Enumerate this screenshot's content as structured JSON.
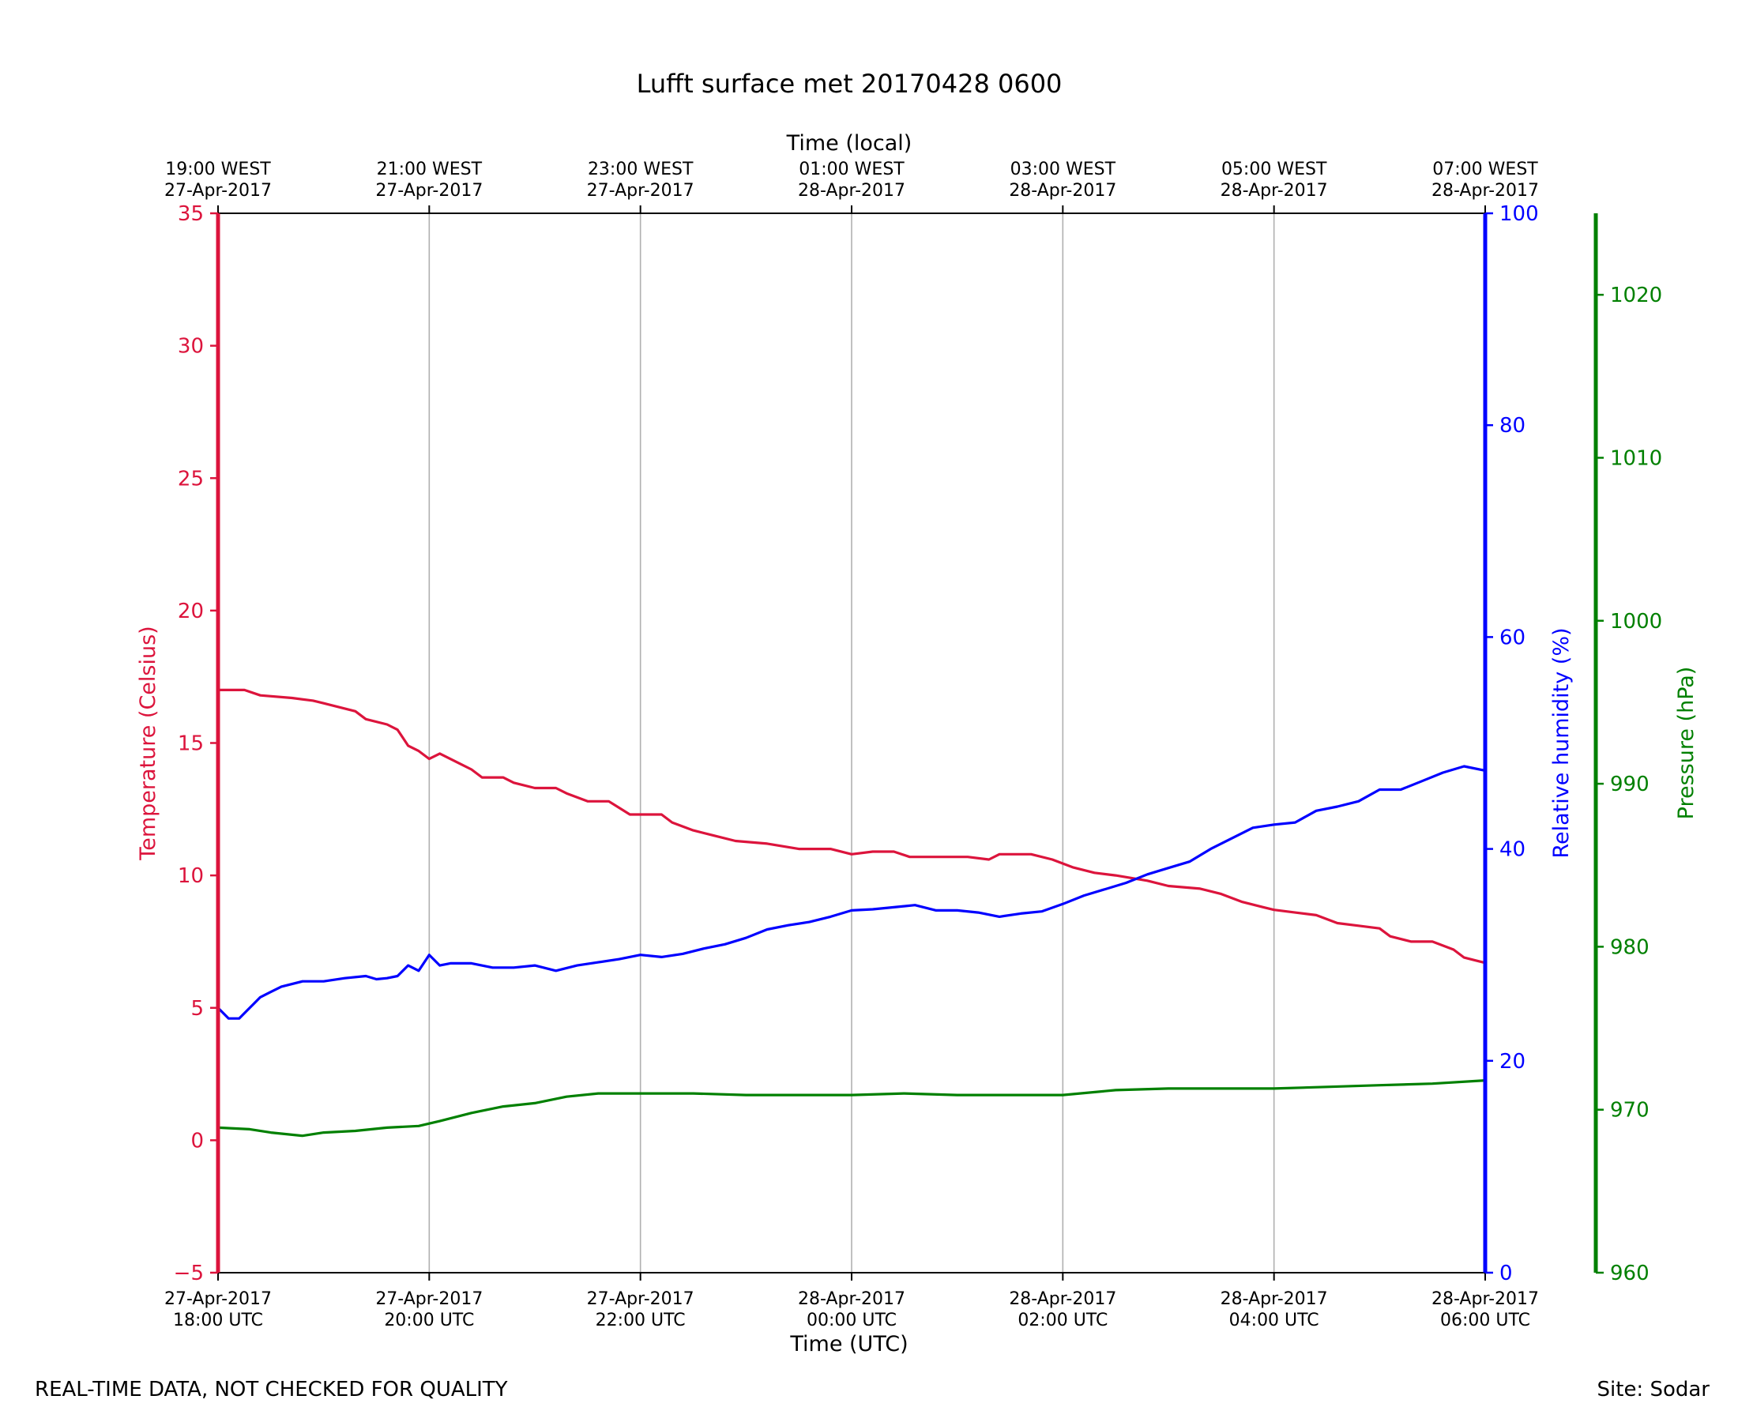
{
  "chart_data": {
    "type": "line",
    "title": "Lufft surface met 20170428 0600",
    "xlabel": "Time (UTC)",
    "x2label": "Time (local)",
    "x_ticks_bottom": [
      {
        "x": 0,
        "line1": "27-Apr-2017",
        "line2": "18:00 UTC"
      },
      {
        "x": 2,
        "line1": "27-Apr-2017",
        "line2": "20:00 UTC"
      },
      {
        "x": 4,
        "line1": "27-Apr-2017",
        "line2": "22:00 UTC"
      },
      {
        "x": 6,
        "line1": "28-Apr-2017",
        "line2": "00:00 UTC"
      },
      {
        "x": 8,
        "line1": "28-Apr-2017",
        "line2": "02:00 UTC"
      },
      {
        "x": 10,
        "line1": "28-Apr-2017",
        "line2": "04:00 UTC"
      },
      {
        "x": 12,
        "line1": "28-Apr-2017",
        "line2": "06:00 UTC"
      }
    ],
    "x_ticks_top": [
      {
        "x": 0,
        "line1": "19:00 WEST",
        "line2": "27-Apr-2017"
      },
      {
        "x": 2,
        "line1": "21:00 WEST",
        "line2": "27-Apr-2017"
      },
      {
        "x": 4,
        "line1": "23:00 WEST",
        "line2": "27-Apr-2017"
      },
      {
        "x": 6,
        "line1": "01:00 WEST",
        "line2": "28-Apr-2017"
      },
      {
        "x": 8,
        "line1": "03:00 WEST",
        "line2": "28-Apr-2017"
      },
      {
        "x": 10,
        "line1": "05:00 WEST",
        "line2": "28-Apr-2017"
      },
      {
        "x": 12,
        "line1": "07:00 WEST",
        "line2": "28-Apr-2017"
      }
    ],
    "xlim": [
      0,
      12
    ],
    "axes": {
      "temperature": {
        "label": "Temperature (Celsius)",
        "ylim": [
          -5,
          35
        ],
        "ticks": [
          -5,
          0,
          5,
          10,
          15,
          20,
          25,
          30,
          35
        ],
        "color": "#dc143c",
        "side": "left"
      },
      "humidity": {
        "label": "Relative humidity (%)",
        "ylim": [
          0,
          100
        ],
        "ticks": [
          0,
          20,
          40,
          60,
          80,
          100
        ],
        "color": "#0000ff",
        "side": "right"
      },
      "pressure": {
        "label": "Pressure (hPa)",
        "ylim": [
          960,
          1025
        ],
        "ticks": [
          960,
          970,
          980,
          990,
          1000,
          1010,
          1020
        ],
        "color": "#008000",
        "side": "right-outer"
      }
    },
    "grid": "vertical",
    "series": [
      {
        "axis": "temperature",
        "color": "#dc143c",
        "points": [
          [
            0,
            17.0
          ],
          [
            0.25,
            17.0
          ],
          [
            0.4,
            16.8
          ],
          [
            0.7,
            16.7
          ],
          [
            0.9,
            16.6
          ],
          [
            1.0,
            16.5
          ],
          [
            1.3,
            16.2
          ],
          [
            1.4,
            15.9
          ],
          [
            1.6,
            15.7
          ],
          [
            1.7,
            15.5
          ],
          [
            1.75,
            15.2
          ],
          [
            1.8,
            14.9
          ],
          [
            1.9,
            14.7
          ],
          [
            2.0,
            14.4
          ],
          [
            2.1,
            14.6
          ],
          [
            2.3,
            14.2
          ],
          [
            2.4,
            14.0
          ],
          [
            2.5,
            13.7
          ],
          [
            2.7,
            13.7
          ],
          [
            2.8,
            13.5
          ],
          [
            3.0,
            13.3
          ],
          [
            3.2,
            13.3
          ],
          [
            3.3,
            13.1
          ],
          [
            3.5,
            12.8
          ],
          [
            3.7,
            12.8
          ],
          [
            3.9,
            12.3
          ],
          [
            4.2,
            12.3
          ],
          [
            4.3,
            12.0
          ],
          [
            4.5,
            11.7
          ],
          [
            4.7,
            11.5
          ],
          [
            4.9,
            11.3
          ],
          [
            5.2,
            11.2
          ],
          [
            5.5,
            11.0
          ],
          [
            5.8,
            11.0
          ],
          [
            6.0,
            10.8
          ],
          [
            6.2,
            10.9
          ],
          [
            6.4,
            10.9
          ],
          [
            6.55,
            10.7
          ],
          [
            6.8,
            10.7
          ],
          [
            7.1,
            10.7
          ],
          [
            7.3,
            10.6
          ],
          [
            7.4,
            10.8
          ],
          [
            7.7,
            10.8
          ],
          [
            7.9,
            10.6
          ],
          [
            8.1,
            10.3
          ],
          [
            8.3,
            10.1
          ],
          [
            8.5,
            10.0
          ],
          [
            8.8,
            9.8
          ],
          [
            9.0,
            9.6
          ],
          [
            9.3,
            9.5
          ],
          [
            9.5,
            9.3
          ],
          [
            9.7,
            9.0
          ],
          [
            9.9,
            8.8
          ],
          [
            10.0,
            8.7
          ],
          [
            10.2,
            8.6
          ],
          [
            10.4,
            8.5
          ],
          [
            10.6,
            8.2
          ],
          [
            10.8,
            8.1
          ],
          [
            11.0,
            8.0
          ],
          [
            11.1,
            7.7
          ],
          [
            11.3,
            7.5
          ],
          [
            11.5,
            7.5
          ],
          [
            11.7,
            7.2
          ],
          [
            11.8,
            6.9
          ],
          [
            11.9,
            6.8
          ],
          [
            12.0,
            6.7
          ]
        ]
      },
      {
        "axis": "humidity",
        "color": "#0000ff",
        "points": [
          [
            0,
            25.0
          ],
          [
            0.1,
            24.0
          ],
          [
            0.2,
            24.0
          ],
          [
            0.3,
            25.0
          ],
          [
            0.4,
            26.0
          ],
          [
            0.5,
            26.5
          ],
          [
            0.6,
            27.0
          ],
          [
            0.8,
            27.5
          ],
          [
            1.0,
            27.5
          ],
          [
            1.2,
            27.8
          ],
          [
            1.4,
            28.0
          ],
          [
            1.5,
            27.7
          ],
          [
            1.6,
            27.8
          ],
          [
            1.7,
            28.0
          ],
          [
            1.8,
            29.0
          ],
          [
            1.9,
            28.5
          ],
          [
            2.0,
            30.0
          ],
          [
            2.1,
            29.0
          ],
          [
            2.2,
            29.2
          ],
          [
            2.4,
            29.2
          ],
          [
            2.6,
            28.8
          ],
          [
            2.8,
            28.8
          ],
          [
            3.0,
            29.0
          ],
          [
            3.2,
            28.5
          ],
          [
            3.4,
            29.0
          ],
          [
            3.6,
            29.3
          ],
          [
            3.8,
            29.6
          ],
          [
            4.0,
            30.0
          ],
          [
            4.2,
            29.8
          ],
          [
            4.4,
            30.1
          ],
          [
            4.6,
            30.6
          ],
          [
            4.8,
            31.0
          ],
          [
            5.0,
            31.6
          ],
          [
            5.2,
            32.4
          ],
          [
            5.4,
            32.8
          ],
          [
            5.6,
            33.1
          ],
          [
            5.8,
            33.6
          ],
          [
            6.0,
            34.2
          ],
          [
            6.2,
            34.3
          ],
          [
            6.4,
            34.5
          ],
          [
            6.6,
            34.7
          ],
          [
            6.8,
            34.2
          ],
          [
            7.0,
            34.2
          ],
          [
            7.2,
            34.0
          ],
          [
            7.4,
            33.6
          ],
          [
            7.6,
            33.9
          ],
          [
            7.8,
            34.1
          ],
          [
            8.0,
            34.8
          ],
          [
            8.2,
            35.6
          ],
          [
            8.4,
            36.2
          ],
          [
            8.6,
            36.8
          ],
          [
            8.8,
            37.6
          ],
          [
            9.0,
            38.2
          ],
          [
            9.2,
            38.8
          ],
          [
            9.4,
            40.0
          ],
          [
            9.6,
            41.0
          ],
          [
            9.8,
            42.0
          ],
          [
            10.0,
            42.3
          ],
          [
            10.2,
            42.5
          ],
          [
            10.4,
            43.6
          ],
          [
            10.6,
            44.0
          ],
          [
            10.8,
            44.5
          ],
          [
            11.0,
            45.6
          ],
          [
            11.2,
            45.6
          ],
          [
            11.4,
            46.4
          ],
          [
            11.6,
            47.2
          ],
          [
            11.8,
            47.8
          ],
          [
            12.0,
            47.4
          ]
        ]
      },
      {
        "axis": "pressure",
        "color": "#008000",
        "points": [
          [
            0,
            968.9
          ],
          [
            0.3,
            968.8
          ],
          [
            0.5,
            968.6
          ],
          [
            0.8,
            968.4
          ],
          [
            1.0,
            968.6
          ],
          [
            1.3,
            968.7
          ],
          [
            1.6,
            968.9
          ],
          [
            1.9,
            969.0
          ],
          [
            2.1,
            969.3
          ],
          [
            2.4,
            969.8
          ],
          [
            2.7,
            970.2
          ],
          [
            3.0,
            970.4
          ],
          [
            3.3,
            970.8
          ],
          [
            3.6,
            971.0
          ],
          [
            4.0,
            971.0
          ],
          [
            4.5,
            971.0
          ],
          [
            5.0,
            970.9
          ],
          [
            5.5,
            970.9
          ],
          [
            6.0,
            970.9
          ],
          [
            6.5,
            971.0
          ],
          [
            7.0,
            970.9
          ],
          [
            7.5,
            970.9
          ],
          [
            8.0,
            970.9
          ],
          [
            8.5,
            971.2
          ],
          [
            9.0,
            971.3
          ],
          [
            9.5,
            971.3
          ],
          [
            10.0,
            971.3
          ],
          [
            10.5,
            971.4
          ],
          [
            11.0,
            971.5
          ],
          [
            11.5,
            971.6
          ],
          [
            12.0,
            971.8
          ]
        ]
      }
    ]
  },
  "footer": {
    "left_text": "REAL-TIME DATA, NOT CHECKED FOR QUALITY",
    "right_text": "Site: Sodar"
  }
}
